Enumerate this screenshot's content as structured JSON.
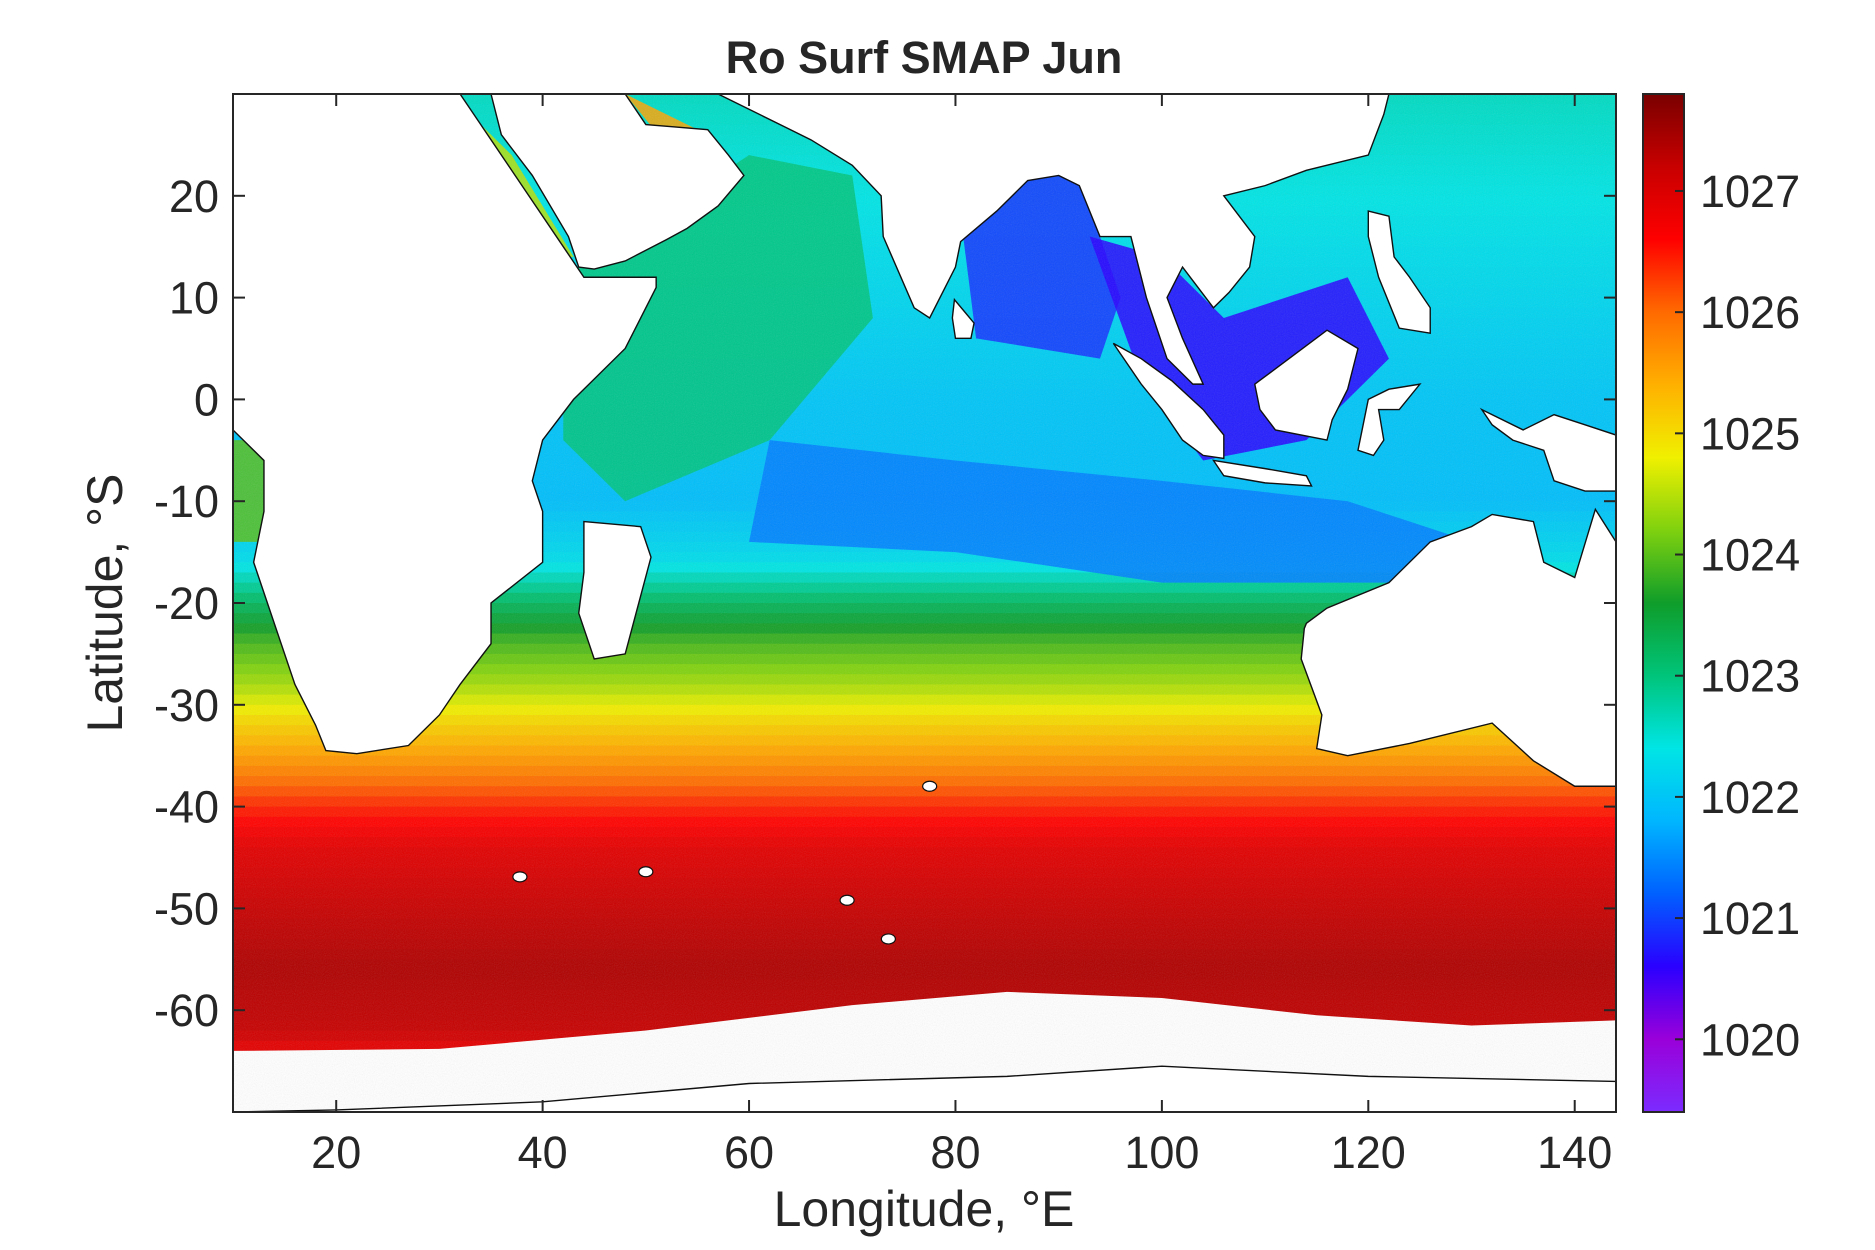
{
  "chart_data": {
    "type": "heatmap",
    "title": "Ro Surf SMAP Jun",
    "xlabel": "Longitude, °E",
    "ylabel": "Latitude, °S",
    "xlim": [
      10,
      144
    ],
    "ylim": [
      -70,
      30
    ],
    "xticks": [
      20,
      40,
      60,
      80,
      100,
      120,
      140
    ],
    "yticks": [
      20,
      10,
      0,
      -10,
      -20,
      -30,
      -40,
      -50,
      -60
    ],
    "colorbar": {
      "ticks": [
        1027,
        1026,
        1025,
        1024,
        1023,
        1022,
        1021,
        1020
      ],
      "range": [
        1019.4,
        1027.8
      ],
      "colormap": [
        "#7b2bff",
        "#9a00d9",
        "#2a00ff",
        "#0060ff",
        "#00b6ff",
        "#00e5e5",
        "#00c47a",
        "#0f9d2a",
        "#7fd10f",
        "#f0f000",
        "#ffb000",
        "#ff6a00",
        "#ff0000",
        "#c80000",
        "#7a0000"
      ]
    },
    "fields": [
      {
        "region": "Southern Ocean band 40°S–64°S",
        "value": 1027.2
      },
      {
        "region": "Subtropical band 30°S–40°S",
        "value": 1025.5
      },
      {
        "region": "Transition band ~22°S–30°S",
        "value": 1024.0
      },
      {
        "region": "Western Arabian Sea / Somali basin",
        "value": 1023.0
      },
      {
        "region": "Bay of Bengal / eastern equatorial Indian Ocean",
        "value": 1021.6
      },
      {
        "region": "Andaman Sea / Gulf of Thailand / South China Sea",
        "value": 1020.6
      },
      {
        "region": "Red Sea",
        "value": 1024.5
      },
      {
        "region": "Persian Gulf",
        "value": 1025.5
      }
    ]
  }
}
